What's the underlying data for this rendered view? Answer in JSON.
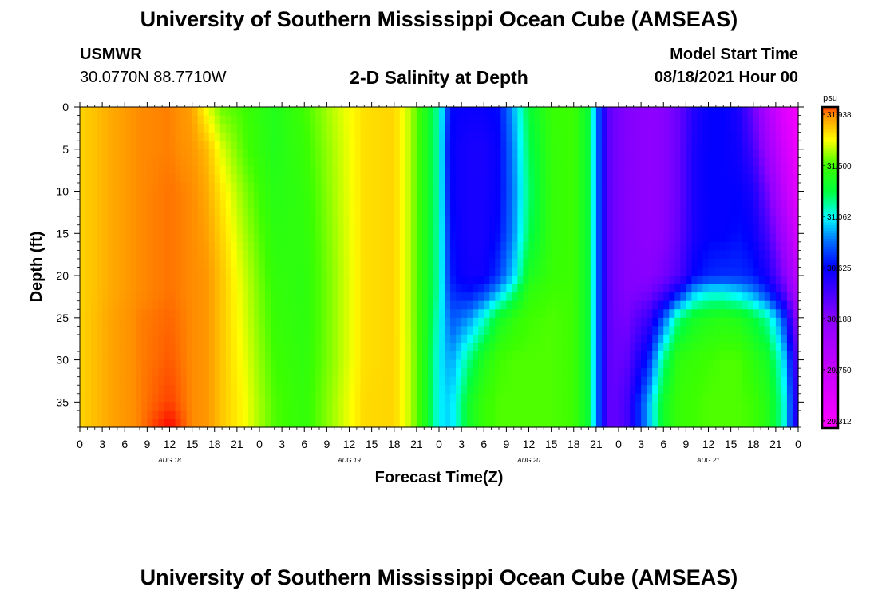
{
  "header": {
    "title": "University of Southern Mississippi Ocean Cube (AMSEAS)",
    "station": "USMWR",
    "coords": "30.0770N  88.7710W",
    "chart_title": "2-D Salinity at Depth",
    "start_label": "Model Start Time",
    "start_value": "08/18/2021 Hour 00"
  },
  "footer": {
    "title": "University of Southern Mississippi Ocean Cube (AMSEAS)"
  },
  "chart_data": {
    "type": "heatmap",
    "title": "2-D Salinity at Depth",
    "xlabel": "Forecast Time(Z)",
    "ylabel": "Depth (ft)",
    "x_hours": [
      0,
      3,
      6,
      9,
      12,
      15,
      18,
      21,
      24,
      27,
      30,
      33,
      36,
      39,
      42,
      45,
      48,
      51,
      54,
      57,
      60,
      63,
      66,
      69,
      72,
      75,
      78,
      81,
      84,
      87,
      90,
      93,
      96
    ],
    "x_tick_labels": [
      "0",
      "3",
      "6",
      "9",
      "12",
      "15",
      "18",
      "21",
      "0",
      "3",
      "6",
      "9",
      "12",
      "15",
      "18",
      "21",
      "0",
      "3",
      "6",
      "9",
      "12",
      "15",
      "18",
      "21",
      "0",
      "3",
      "6",
      "9",
      "12",
      "15",
      "18",
      "21",
      "0"
    ],
    "day_labels": [
      {
        "label": "AUG 18",
        "hour": 12
      },
      {
        "label": "AUG 19",
        "hour": 36
      },
      {
        "label": "AUG 20",
        "hour": 60
      },
      {
        "label": "AUG 21",
        "hour": 84
      }
    ],
    "y_ticks": [
      0,
      5,
      10,
      15,
      20,
      25,
      30,
      35
    ],
    "ylim": [
      0,
      38
    ],
    "xlim": [
      0,
      96
    ],
    "y_inverted": true,
    "colorbar": {
      "unit": "psu",
      "ticks": [
        31.938,
        31.5,
        31.062,
        30.625,
        30.188,
        29.75,
        29.312
      ],
      "range": [
        29.25,
        32.0
      ]
    },
    "depths_ft": [
      0,
      5,
      10,
      15,
      20,
      22,
      25,
      30,
      35,
      38
    ],
    "salinity_profiles": [
      {
        "hour": 0,
        "values": [
          31.8,
          31.8,
          31.8,
          31.8,
          31.8,
          31.8,
          31.8,
          31.8,
          31.8,
          31.8
        ]
      },
      {
        "hour": 4,
        "values": [
          31.88,
          31.88,
          31.88,
          31.88,
          31.88,
          31.88,
          31.89,
          31.89,
          31.89,
          31.89
        ]
      },
      {
        "hour": 8,
        "values": [
          31.94,
          31.94,
          31.94,
          31.94,
          31.94,
          31.94,
          31.95,
          31.95,
          31.95,
          31.95
        ]
      },
      {
        "hour": 12,
        "values": [
          31.95,
          31.95,
          31.96,
          31.96,
          31.96,
          31.96,
          31.97,
          31.98,
          32.0,
          32.05
        ]
      },
      {
        "hour": 15,
        "values": [
          31.9,
          31.92,
          31.94,
          31.94,
          31.94,
          31.94,
          31.94,
          31.94,
          31.94,
          31.94
        ]
      },
      {
        "hour": 17,
        "values": [
          31.7,
          31.85,
          31.88,
          31.9,
          31.92,
          31.92,
          31.92,
          31.92,
          31.92,
          31.92
        ]
      },
      {
        "hour": 19,
        "values": [
          31.55,
          31.68,
          31.76,
          31.8,
          31.83,
          31.83,
          31.83,
          31.83,
          31.83,
          31.83
        ]
      },
      {
        "hour": 22,
        "values": [
          31.5,
          31.52,
          31.58,
          31.62,
          31.66,
          31.67,
          31.68,
          31.7,
          31.72,
          31.72
        ]
      },
      {
        "hour": 26,
        "values": [
          31.4,
          31.4,
          31.42,
          31.44,
          31.46,
          31.47,
          31.48,
          31.5,
          31.52,
          31.52
        ]
      },
      {
        "hour": 30,
        "values": [
          31.5,
          31.48,
          31.46,
          31.45,
          31.44,
          31.44,
          31.44,
          31.45,
          31.46,
          31.46
        ]
      },
      {
        "hour": 34,
        "values": [
          31.65,
          31.63,
          31.62,
          31.61,
          31.6,
          31.6,
          31.6,
          31.6,
          31.62,
          31.62
        ]
      },
      {
        "hour": 38,
        "values": [
          31.78,
          31.78,
          31.78,
          31.78,
          31.78,
          31.78,
          31.78,
          31.78,
          31.79,
          31.79
        ]
      },
      {
        "hour": 42,
        "values": [
          31.8,
          31.8,
          31.8,
          31.8,
          31.8,
          31.8,
          31.8,
          31.8,
          31.8,
          31.8
        ]
      },
      {
        "hour": 44,
        "values": [
          31.65,
          31.65,
          31.65,
          31.65,
          31.65,
          31.65,
          31.65,
          31.66,
          31.66,
          31.66
        ]
      },
      {
        "hour": 46,
        "values": [
          31.42,
          31.42,
          31.42,
          31.42,
          31.42,
          31.42,
          31.42,
          31.42,
          31.42,
          31.42
        ]
      },
      {
        "hour": 48,
        "values": [
          31.15,
          31.15,
          31.15,
          31.15,
          31.15,
          31.15,
          31.1,
          31.06,
          31.06,
          31.06
        ]
      },
      {
        "hour": 49,
        "values": [
          30.78,
          30.72,
          30.75,
          30.8,
          30.82,
          30.85,
          30.9,
          30.95,
          31.0,
          31.0
        ]
      },
      {
        "hour": 50,
        "values": [
          30.62,
          30.6,
          30.6,
          30.62,
          30.64,
          30.7,
          30.8,
          30.95,
          31.05,
          31.05
        ]
      },
      {
        "hour": 52,
        "values": [
          30.6,
          30.56,
          30.56,
          30.56,
          30.58,
          30.66,
          30.9,
          31.2,
          31.35,
          31.35
        ]
      },
      {
        "hour": 54,
        "values": [
          30.6,
          30.55,
          30.56,
          30.56,
          30.58,
          30.75,
          31.1,
          31.4,
          31.48,
          31.48
        ]
      },
      {
        "hour": 56,
        "values": [
          30.65,
          30.62,
          30.62,
          30.65,
          30.75,
          30.95,
          31.35,
          31.5,
          31.52,
          31.52
        ]
      },
      {
        "hour": 58,
        "values": [
          30.95,
          30.9,
          30.88,
          30.9,
          31.0,
          31.2,
          31.45,
          31.52,
          31.52,
          31.52
        ]
      },
      {
        "hour": 60,
        "values": [
          31.3,
          31.25,
          31.22,
          31.25,
          31.38,
          31.45,
          31.5,
          31.52,
          31.52,
          31.52
        ]
      },
      {
        "hour": 63,
        "values": [
          31.48,
          31.47,
          31.47,
          31.47,
          31.48,
          31.5,
          31.52,
          31.52,
          31.52,
          31.52
        ]
      },
      {
        "hour": 66,
        "values": [
          31.5,
          31.5,
          31.5,
          31.5,
          31.5,
          31.5,
          31.5,
          31.5,
          31.5,
          31.5
        ]
      },
      {
        "hour": 68,
        "values": [
          31.3,
          31.3,
          31.3,
          31.3,
          31.3,
          31.3,
          31.3,
          31.3,
          31.3,
          31.3
        ]
      },
      {
        "hour": 69,
        "values": [
          30.9,
          30.9,
          30.9,
          30.9,
          30.9,
          30.9,
          30.9,
          30.9,
          30.9,
          30.9
        ]
      },
      {
        "hour": 70,
        "values": [
          30.55,
          30.55,
          30.55,
          30.55,
          30.55,
          30.55,
          30.55,
          30.55,
          30.55,
          30.55
        ]
      },
      {
        "hour": 71,
        "values": [
          30.3,
          30.3,
          30.3,
          30.3,
          30.3,
          30.3,
          30.3,
          30.3,
          30.3,
          30.3
        ]
      },
      {
        "hour": 73,
        "values": [
          30.22,
          30.22,
          30.22,
          30.22,
          30.22,
          30.22,
          30.25,
          30.32,
          30.4,
          30.4
        ]
      },
      {
        "hour": 76,
        "values": [
          30.18,
          30.18,
          30.18,
          30.18,
          30.2,
          30.25,
          30.45,
          30.7,
          30.95,
          30.95
        ]
      },
      {
        "hour": 78,
        "values": [
          30.2,
          30.2,
          30.2,
          30.2,
          30.25,
          30.4,
          30.8,
          31.2,
          31.35,
          31.35
        ]
      },
      {
        "hour": 80,
        "values": [
          30.3,
          30.3,
          30.3,
          30.32,
          30.38,
          30.65,
          31.2,
          31.45,
          31.48,
          31.48
        ]
      },
      {
        "hour": 82,
        "values": [
          30.52,
          30.55,
          30.55,
          30.55,
          30.62,
          30.95,
          31.35,
          31.48,
          31.5,
          31.5
        ]
      },
      {
        "hour": 84,
        "values": [
          30.62,
          30.62,
          30.62,
          30.62,
          30.7,
          31.06,
          31.4,
          31.5,
          31.52,
          31.52
        ]
      },
      {
        "hour": 86,
        "values": [
          30.62,
          30.62,
          30.62,
          30.62,
          30.72,
          31.06,
          31.42,
          31.52,
          31.52,
          31.52
        ]
      },
      {
        "hour": 88,
        "values": [
          30.55,
          30.58,
          30.62,
          30.65,
          30.72,
          31.0,
          31.4,
          31.52,
          31.52,
          31.52
        ]
      },
      {
        "hour": 90,
        "values": [
          30.3,
          30.42,
          30.55,
          30.6,
          30.68,
          30.9,
          31.3,
          31.45,
          31.5,
          31.5
        ]
      },
      {
        "hour": 92,
        "values": [
          29.9,
          30.05,
          30.25,
          30.4,
          30.55,
          30.7,
          31.15,
          31.35,
          31.4,
          31.4
        ]
      },
      {
        "hour": 94,
        "values": [
          29.55,
          29.7,
          29.85,
          30.05,
          30.25,
          30.4,
          30.8,
          31.05,
          31.15,
          31.15
        ]
      },
      {
        "hour": 96,
        "values": [
          29.32,
          29.35,
          29.45,
          29.6,
          29.8,
          29.9,
          30.1,
          30.3,
          30.4,
          30.4
        ]
      }
    ]
  }
}
